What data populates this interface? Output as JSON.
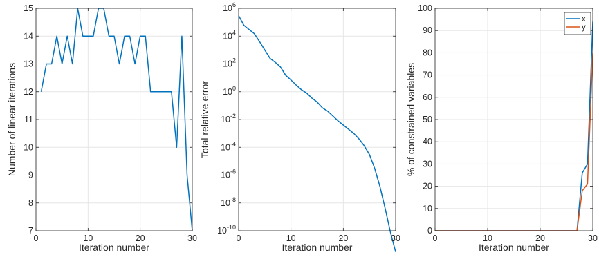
{
  "chart_data": [
    {
      "type": "line",
      "xlabel": "Iteration number",
      "ylabel": "Number of linear iterations",
      "xlim": [
        0,
        30
      ],
      "ylim": [
        7,
        15
      ],
      "xticks": [
        0,
        10,
        20,
        30
      ],
      "yticks": [
        7,
        8,
        9,
        10,
        11,
        12,
        13,
        14,
        15
      ],
      "grid": true,
      "series": [
        {
          "color": "#0072bd",
          "x": [
            1,
            2,
            3,
            4,
            5,
            6,
            7,
            8,
            9,
            10,
            11,
            12,
            13,
            14,
            15,
            16,
            17,
            18,
            19,
            20,
            21,
            22,
            23,
            24,
            25,
            26,
            27,
            28,
            29,
            30
          ],
          "y": [
            12,
            13,
            13,
            14,
            13,
            14,
            13,
            15,
            14,
            14,
            14,
            15,
            15,
            14,
            14,
            13,
            14,
            14,
            13,
            14,
            14,
            12,
            12,
            12,
            12,
            12,
            10,
            14,
            9,
            7
          ]
        }
      ]
    },
    {
      "type": "line",
      "xlabel": "Iteration number",
      "ylabel": "Total relative error",
      "xlim": [
        0,
        30
      ],
      "yscale": "log",
      "ylim": [
        1e-10,
        1000000.0
      ],
      "xticks": [
        0,
        10,
        20,
        30
      ],
      "yticks": [
        1e-10,
        1e-08,
        1e-06,
        0.0001,
        0.01,
        1,
        100.0,
        10000.0,
        1000000.0
      ],
      "grid": true,
      "series": [
        {
          "color": "#0072bd",
          "x": [
            0,
            1,
            2,
            3,
            4,
            5,
            6,
            7,
            8,
            9,
            10,
            11,
            12,
            13,
            14,
            15,
            16,
            17,
            18,
            19,
            20,
            21,
            22,
            23,
            24,
            25,
            26,
            27,
            28,
            29,
            30
          ],
          "y": [
            300000,
            60000,
            30000,
            15000,
            4000,
            1000,
            250,
            130,
            60,
            15,
            7,
            3,
            1.4,
            0.8,
            0.35,
            0.18,
            0.07,
            0.04,
            0.018,
            0.008,
            0.004,
            0.002,
            0.001,
            0.0004,
            0.00013,
            3e-05,
            3e-06,
            1.5e-07,
            4e-09,
            8e-11,
            3e-12
          ]
        }
      ]
    },
    {
      "type": "line",
      "xlabel": "Iteration number",
      "ylabel": "% of constrained variables",
      "xlim": [
        0,
        30
      ],
      "ylim": [
        0,
        100
      ],
      "xticks": [
        0,
        10,
        20,
        30
      ],
      "yticks": [
        0,
        10,
        20,
        30,
        40,
        50,
        60,
        70,
        80,
        90,
        100
      ],
      "grid": true,
      "legend": "top-right",
      "series": [
        {
          "name": "x",
          "color": "#0072bd",
          "x": [
            0,
            1,
            2,
            3,
            4,
            5,
            6,
            7,
            8,
            9,
            10,
            11,
            12,
            13,
            14,
            15,
            16,
            17,
            18,
            19,
            20,
            21,
            22,
            23,
            24,
            25,
            26,
            27,
            28,
            29,
            30
          ],
          "y": [
            0,
            0,
            0,
            0,
            0,
            0,
            0,
            0,
            0,
            0,
            0,
            0,
            0,
            0,
            0,
            0,
            0,
            0,
            0,
            0,
            0,
            0,
            0,
            0,
            0,
            0,
            0,
            0,
            26,
            30,
            94
          ]
        },
        {
          "name": "y",
          "color": "#d95319",
          "x": [
            0,
            1,
            2,
            3,
            4,
            5,
            6,
            7,
            8,
            9,
            10,
            11,
            12,
            13,
            14,
            15,
            16,
            17,
            18,
            19,
            20,
            21,
            22,
            23,
            24,
            25,
            26,
            27,
            28,
            29,
            30
          ],
          "y": [
            0,
            0,
            0,
            0,
            0,
            0,
            0,
            0,
            0,
            0,
            0,
            0,
            0,
            0,
            0,
            0,
            0,
            0,
            0,
            0,
            0,
            0,
            0,
            0,
            0,
            0,
            0,
            0,
            18,
            21,
            80
          ]
        }
      ]
    }
  ]
}
